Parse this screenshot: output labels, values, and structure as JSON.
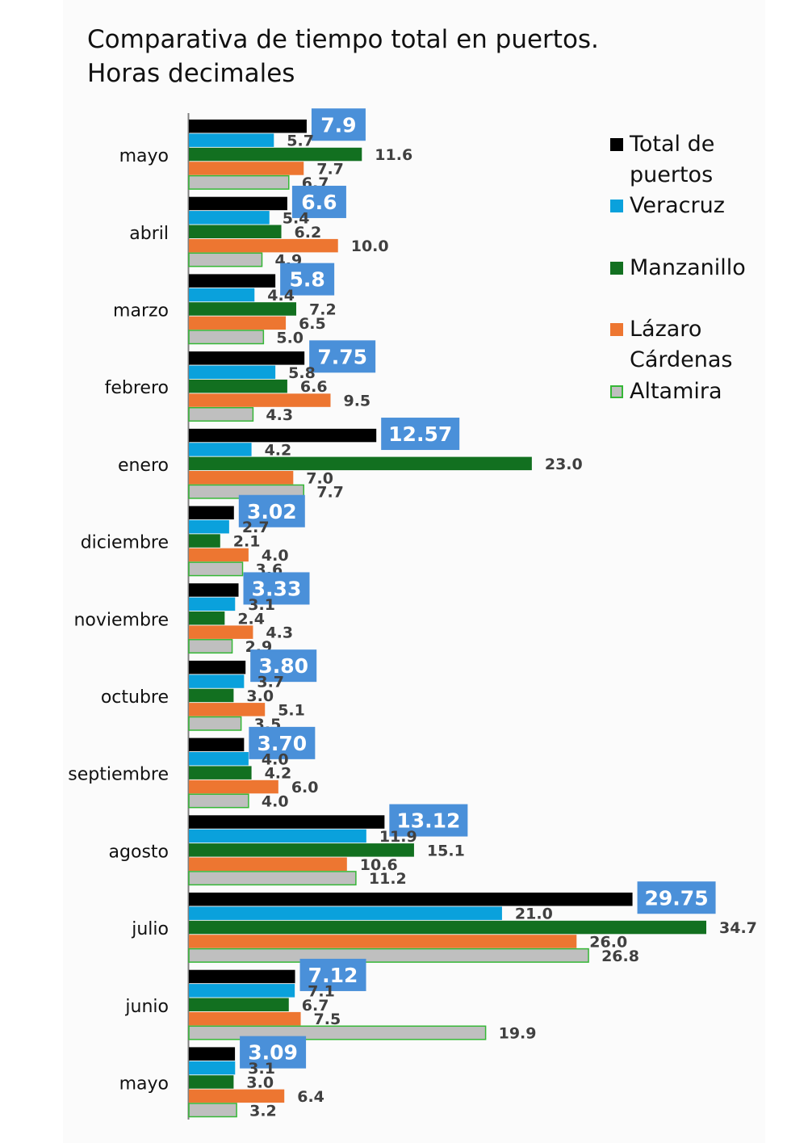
{
  "chart_data": {
    "type": "bar",
    "orientation": "horizontal",
    "title": "Comparativa de tiempo total en puertos.",
    "subtitle": "Horas decimales",
    "categories": [
      "mayo",
      "abril",
      "marzo",
      "febrero",
      "enero",
      "diciembre",
      "noviembre",
      "octubre",
      "septiembre",
      "agosto",
      "julio",
      "junio",
      "mayo"
    ],
    "series": [
      {
        "name": "Total de puertos",
        "color": "#000000",
        "values": [
          7.9,
          6.6,
          5.8,
          7.75,
          12.57,
          3.02,
          3.33,
          3.8,
          3.7,
          13.12,
          29.75,
          7.12,
          3.09
        ],
        "labels": [
          "7.9",
          "6.6",
          "5.8",
          "7.75",
          "12.57",
          "3.02",
          "3.33",
          "3.80",
          "3.70",
          "13.12",
          "29.75",
          "7.12",
          "3.09"
        ]
      },
      {
        "name": "Veracruz",
        "color": "#0aa1dc",
        "values": [
          5.7,
          5.4,
          4.4,
          5.8,
          4.2,
          2.7,
          3.1,
          3.7,
          4.0,
          11.9,
          21.0,
          7.1,
          3.1
        ],
        "labels": [
          "5.7",
          "5.4",
          "4.4",
          "5.8",
          "4.2",
          "2.7",
          "3.1",
          "3.7",
          "4.0",
          "11.9",
          "21.0",
          "7.1",
          "3.1"
        ]
      },
      {
        "name": "Manzanillo",
        "color": "#127020",
        "values": [
          11.6,
          6.2,
          7.2,
          6.6,
          23.0,
          2.1,
          2.4,
          3.0,
          4.2,
          15.1,
          34.7,
          6.7,
          3.0
        ],
        "labels": [
          "11.6",
          "6.2",
          "7.2",
          "6.6",
          "23.0",
          "2.1",
          "2.4",
          "3.0",
          "4.2",
          "15.1",
          "34.7",
          "6.7",
          "3.0"
        ]
      },
      {
        "name": "Lázaro Cárdenas",
        "color": "#ed7631",
        "values": [
          7.7,
          10.0,
          6.5,
          9.5,
          7.0,
          4.0,
          4.3,
          5.1,
          6.0,
          10.6,
          26.0,
          7.5,
          6.4
        ],
        "labels": [
          "7.7",
          "10.0",
          "6.5",
          "9.5",
          "7.0",
          "4.0",
          "4.3",
          "5.1",
          "6.0",
          "10.6",
          "26.0",
          "7.5",
          "6.4"
        ]
      },
      {
        "name": "Altamira",
        "color": "#bfbfbf",
        "stroke": "#35b736",
        "values": [
          6.7,
          4.9,
          5.0,
          4.3,
          7.7,
          3.6,
          2.9,
          3.5,
          4.0,
          11.2,
          26.8,
          19.9,
          3.2
        ],
        "labels": [
          "6.7",
          "4.9",
          "5.0",
          "4.3",
          "7.7",
          "3.6",
          "2.9",
          "3.5",
          "4.0",
          "11.2",
          "26.8",
          "19.9",
          "3.2"
        ]
      }
    ],
    "xlim": [
      0,
      34.7
    ],
    "grid": false,
    "legend": "right",
    "highlight_label_color": "#4a90d9"
  },
  "legend": {
    "items": [
      {
        "line1": "Total de",
        "line2": "puertos"
      },
      {
        "line1": "Veracruz"
      },
      {
        "line1": "Manzanillo"
      },
      {
        "line1": "Lázaro",
        "line2": "Cárdenas"
      },
      {
        "line1": "Altamira"
      }
    ]
  }
}
